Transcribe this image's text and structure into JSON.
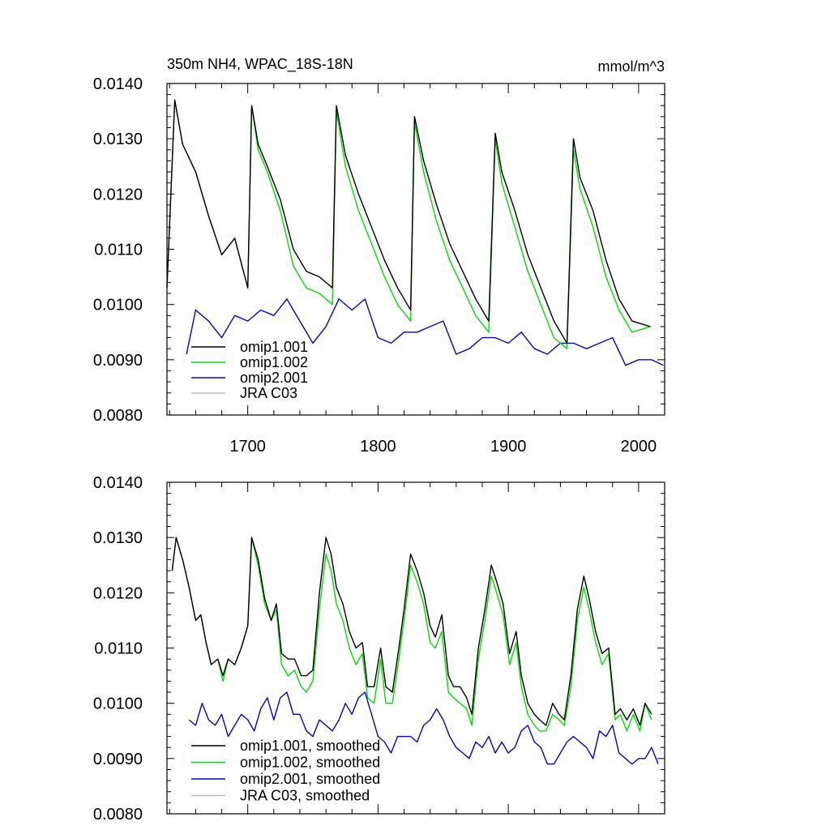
{
  "chart_data": [
    {
      "type": "line",
      "title": "350m NH4, WPAC_18S-18N",
      "units": "mmol/m^3",
      "xlim": [
        1638,
        2020
      ],
      "ylim": [
        0.008,
        0.014
      ],
      "yticks": [
        "0.0080",
        "0.0090",
        "0.0100",
        "0.0110",
        "0.0120",
        "0.0130",
        "0.0140"
      ],
      "xticks": [
        "1700",
        "1800",
        "1900",
        "2000"
      ],
      "legend_position": "bottom-left",
      "grid": false,
      "series": [
        {
          "name": "omip1.001",
          "color": "#000000",
          "x": [
            1638,
            1644,
            1650,
            1660,
            1670,
            1680,
            1690,
            1700,
            1703,
            1708,
            1715,
            1725,
            1735,
            1745,
            1755,
            1765,
            1768,
            1775,
            1785,
            1795,
            1805,
            1815,
            1825,
            1828,
            1835,
            1845,
            1855,
            1865,
            1875,
            1885,
            1890,
            1895,
            1905,
            1915,
            1925,
            1935,
            1945,
            1950,
            1955,
            1965,
            1975,
            1985,
            1995,
            2009
          ],
          "y": [
            0.0103,
            0.0137,
            0.0129,
            0.0124,
            0.0116,
            0.0109,
            0.0112,
            0.0103,
            0.0136,
            0.0129,
            0.0125,
            0.0119,
            0.011,
            0.0106,
            0.0105,
            0.0103,
            0.0136,
            0.0127,
            0.012,
            0.0114,
            0.0108,
            0.0103,
            0.0099,
            0.0134,
            0.0126,
            0.0118,
            0.0111,
            0.0106,
            0.0101,
            0.0097,
            0.0131,
            0.0124,
            0.0117,
            0.0109,
            0.0103,
            0.0097,
            0.0093,
            0.013,
            0.0123,
            0.0117,
            0.0108,
            0.0101,
            0.0097,
            0.0096
          ]
        },
        {
          "name": "omip1.002",
          "color": "#00e000",
          "x": [
            1638,
            1644,
            1650,
            1660,
            1670,
            1680,
            1690,
            1700,
            1703,
            1708,
            1715,
            1725,
            1735,
            1745,
            1755,
            1765,
            1768,
            1775,
            1785,
            1795,
            1805,
            1815,
            1825,
            1828,
            1835,
            1845,
            1855,
            1865,
            1875,
            1885,
            1890,
            1895,
            1905,
            1915,
            1925,
            1935,
            1945,
            1950,
            1955,
            1965,
            1975,
            1985,
            1995,
            2009
          ],
          "y": [
            0.0103,
            0.0137,
            0.0129,
            0.0124,
            0.0116,
            0.0109,
            0.0112,
            0.0103,
            0.0136,
            0.0128,
            0.0124,
            0.0117,
            0.0107,
            0.0103,
            0.0102,
            0.01,
            0.0135,
            0.0125,
            0.0117,
            0.0111,
            0.0105,
            0.01,
            0.0097,
            0.0133,
            0.0124,
            0.0115,
            0.0108,
            0.0103,
            0.0098,
            0.0095,
            0.013,
            0.0122,
            0.0114,
            0.0106,
            0.01,
            0.0094,
            0.0092,
            0.0128,
            0.0121,
            0.0114,
            0.0105,
            0.0099,
            0.0095,
            0.0096
          ]
        },
        {
          "name": "omip2.001",
          "color": "#0000e0",
          "x": [
            1653,
            1660,
            1670,
            1680,
            1690,
            1700,
            1710,
            1720,
            1730,
            1740,
            1750,
            1760,
            1770,
            1780,
            1790,
            1800,
            1810,
            1820,
            1830,
            1840,
            1850,
            1860,
            1870,
            1880,
            1890,
            1900,
            1910,
            1920,
            1930,
            1940,
            1950,
            1960,
            1970,
            1980,
            1990,
            2000,
            2010,
            2019
          ],
          "y": [
            0.0091,
            0.0099,
            0.0097,
            0.0094,
            0.0098,
            0.0097,
            0.0099,
            0.0098,
            0.0101,
            0.0097,
            0.0093,
            0.0096,
            0.0101,
            0.0099,
            0.0101,
            0.0094,
            0.0093,
            0.0095,
            0.0095,
            0.0096,
            0.0097,
            0.0091,
            0.0092,
            0.0094,
            0.0094,
            0.0093,
            0.0095,
            0.0092,
            0.0091,
            0.0093,
            0.0093,
            0.0092,
            0.0093,
            0.0094,
            0.0089,
            0.009,
            0.009,
            0.0089
          ]
        },
        {
          "name": "JRA C03",
          "color": "#bbbbbb",
          "x": [],
          "y": []
        }
      ]
    },
    {
      "type": "line",
      "xlim": [
        1638,
        2020
      ],
      "ylim": [
        0.008,
        0.014
      ],
      "yticks": [
        "0.0080",
        "0.0090",
        "0.0100",
        "0.0110",
        "0.0120",
        "0.0130",
        "0.0140"
      ],
      "legend_position": "bottom-left",
      "grid": false,
      "series": [
        {
          "name": "omip1.001, smoothed",
          "color": "#000000",
          "x": [
            1642,
            1645,
            1650,
            1655,
            1660,
            1664,
            1668,
            1672,
            1677,
            1681,
            1685,
            1690,
            1695,
            1700,
            1703,
            1708,
            1713,
            1718,
            1722,
            1726,
            1731,
            1736,
            1741,
            1745,
            1750,
            1755,
            1760,
            1764,
            1768,
            1773,
            1778,
            1783,
            1788,
            1792,
            1797,
            1802,
            1806,
            1811,
            1816,
            1820,
            1825,
            1830,
            1835,
            1840,
            1844,
            1849,
            1854,
            1858,
            1863,
            1868,
            1872,
            1877,
            1882,
            1887,
            1891,
            1896,
            1901,
            1906,
            1910,
            1915,
            1920,
            1924,
            1929,
            1934,
            1939,
            1943,
            1948,
            1953,
            1958,
            1962,
            1967,
            1972,
            1977,
            1982,
            1986,
            1991,
            1996,
            2001,
            2005,
            2010
          ],
          "y": [
            0.0124,
            0.013,
            0.0126,
            0.0121,
            0.0115,
            0.0116,
            0.0111,
            0.0107,
            0.0108,
            0.0105,
            0.0108,
            0.0107,
            0.011,
            0.0114,
            0.013,
            0.0126,
            0.0119,
            0.0115,
            0.0118,
            0.0109,
            0.0108,
            0.0108,
            0.0105,
            0.0105,
            0.0106,
            0.012,
            0.013,
            0.0127,
            0.0121,
            0.0118,
            0.0113,
            0.011,
            0.0111,
            0.0103,
            0.0103,
            0.011,
            0.0103,
            0.0102,
            0.011,
            0.0117,
            0.0127,
            0.0124,
            0.012,
            0.0114,
            0.0112,
            0.0116,
            0.0105,
            0.0103,
            0.0103,
            0.0101,
            0.0098,
            0.011,
            0.0117,
            0.0125,
            0.0122,
            0.0118,
            0.0109,
            0.0113,
            0.0105,
            0.01,
            0.0098,
            0.0097,
            0.0096,
            0.01,
            0.0098,
            0.0097,
            0.0105,
            0.0117,
            0.0123,
            0.0119,
            0.0113,
            0.0109,
            0.011,
            0.0098,
            0.0099,
            0.0097,
            0.0099,
            0.0096,
            0.01,
            0.0098
          ]
        },
        {
          "name": "omip1.002, smoothed",
          "color": "#00e000",
          "x": [
            1642,
            1645,
            1650,
            1655,
            1660,
            1664,
            1668,
            1672,
            1677,
            1681,
            1685,
            1690,
            1695,
            1700,
            1703,
            1708,
            1713,
            1718,
            1722,
            1726,
            1731,
            1736,
            1741,
            1745,
            1750,
            1755,
            1760,
            1764,
            1768,
            1773,
            1778,
            1783,
            1788,
            1792,
            1797,
            1802,
            1806,
            1811,
            1816,
            1820,
            1825,
            1830,
            1835,
            1840,
            1844,
            1849,
            1854,
            1858,
            1863,
            1868,
            1872,
            1877,
            1882,
            1887,
            1891,
            1896,
            1901,
            1906,
            1910,
            1915,
            1920,
            1924,
            1929,
            1934,
            1939,
            1943,
            1948,
            1953,
            1958,
            1962,
            1967,
            1972,
            1977,
            1982,
            1986,
            1991,
            1996,
            2001,
            2005,
            2010
          ],
          "y": [
            0.0124,
            0.013,
            0.0126,
            0.0121,
            0.0115,
            0.0116,
            0.0111,
            0.0107,
            0.0108,
            0.0104,
            0.0108,
            0.0107,
            0.011,
            0.0114,
            0.013,
            0.0125,
            0.0118,
            0.0115,
            0.0117,
            0.0107,
            0.0105,
            0.0106,
            0.0103,
            0.0102,
            0.0104,
            0.0117,
            0.0127,
            0.0124,
            0.0118,
            0.0115,
            0.011,
            0.0107,
            0.0109,
            0.0101,
            0.01,
            0.0108,
            0.01,
            0.01,
            0.0108,
            0.0115,
            0.0125,
            0.0122,
            0.0118,
            0.0111,
            0.011,
            0.0113,
            0.0102,
            0.0101,
            0.01,
            0.0099,
            0.0096,
            0.0108,
            0.0115,
            0.0123,
            0.012,
            0.0116,
            0.0107,
            0.0111,
            0.0103,
            0.0098,
            0.0096,
            0.0095,
            0.0095,
            0.0098,
            0.0097,
            0.0096,
            0.0103,
            0.0115,
            0.0121,
            0.0117,
            0.0111,
            0.0107,
            0.0109,
            0.0097,
            0.0098,
            0.0095,
            0.0098,
            0.0095,
            0.01,
            0.0097
          ]
        },
        {
          "name": "omip2.001, smoothed",
          "color": "#0000e0",
          "x": [
            1655,
            1660,
            1665,
            1670,
            1675,
            1680,
            1685,
            1690,
            1695,
            1700,
            1705,
            1710,
            1715,
            1720,
            1725,
            1730,
            1735,
            1740,
            1745,
            1750,
            1755,
            1760,
            1765,
            1770,
            1775,
            1780,
            1785,
            1790,
            1795,
            1800,
            1805,
            1810,
            1815,
            1820,
            1825,
            1830,
            1835,
            1840,
            1845,
            1850,
            1855,
            1860,
            1865,
            1870,
            1875,
            1880,
            1885,
            1890,
            1895,
            1900,
            1905,
            1910,
            1915,
            1920,
            1925,
            1930,
            1935,
            1940,
            1945,
            1950,
            1955,
            1960,
            1965,
            1970,
            1975,
            1980,
            1985,
            1990,
            1995,
            2000,
            2005,
            2010,
            2015
          ],
          "y": [
            0.0097,
            0.0096,
            0.01,
            0.0097,
            0.0096,
            0.0098,
            0.0094,
            0.0096,
            0.0098,
            0.0097,
            0.0095,
            0.0099,
            0.0101,
            0.0097,
            0.0101,
            0.0102,
            0.0098,
            0.0098,
            0.0095,
            0.0094,
            0.0097,
            0.0096,
            0.0095,
            0.0097,
            0.01,
            0.0098,
            0.0101,
            0.0102,
            0.0098,
            0.0094,
            0.0093,
            0.0091,
            0.0094,
            0.0094,
            0.0094,
            0.0093,
            0.0096,
            0.0097,
            0.0099,
            0.0097,
            0.0094,
            0.0092,
            0.0091,
            0.009,
            0.0093,
            0.0092,
            0.0094,
            0.0091,
            0.0093,
            0.0091,
            0.0092,
            0.0095,
            0.0096,
            0.0093,
            0.0092,
            0.0089,
            0.0089,
            0.0091,
            0.0093,
            0.0094,
            0.0093,
            0.0092,
            0.009,
            0.0095,
            0.0094,
            0.0096,
            0.0091,
            0.009,
            0.0089,
            0.009,
            0.009,
            0.0092,
            0.0089
          ]
        },
        {
          "name": "JRA C03, smoothed",
          "color": "#bbbbbb",
          "x": [],
          "y": []
        }
      ]
    }
  ]
}
